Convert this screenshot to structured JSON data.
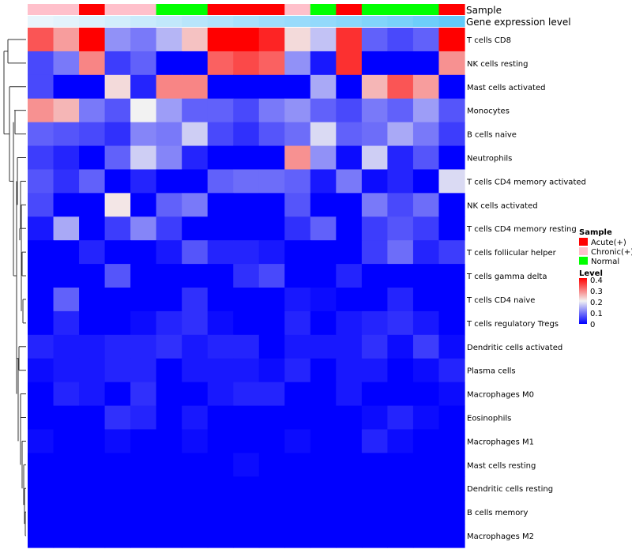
{
  "chart_data": {
    "type": "heatmap",
    "title": "",
    "annotation_rows": {
      "sample_label": "Sample",
      "expression_label": "Gene expression level",
      "sample_groups": [
        "Chronic(+)",
        "Chronic(+)",
        "Acute(+)",
        "Chronic(+)",
        "Chronic(+)",
        "Normal",
        "Normal",
        "Acute(+)",
        "Acute(+)",
        "Acute(+)",
        "Chronic(+)",
        "Normal",
        "Acute(+)",
        "Normal",
        "Normal",
        "Normal",
        "Acute(+)"
      ],
      "expression_values": [
        0.02,
        0.06,
        0.12,
        0.18,
        0.24,
        0.3,
        0.36,
        0.42,
        0.48,
        0.54,
        0.58,
        0.62,
        0.68,
        0.74,
        0.8,
        0.88,
        0.96
      ]
    },
    "rows": [
      "T cells CD8",
      "NK cells resting",
      "Mast cells activated",
      "Monocytes",
      "B cells naive",
      "Neutrophils",
      "T cells CD4 memory activated",
      "NK cells activated",
      "T cells CD4 memory resting",
      "T cells follicular helper",
      "T cells gamma delta",
      "T cells CD4 naive",
      "T cells regulatory  Tregs",
      "Dendritic cells activated",
      "Plasma cells",
      "Macrophages M0",
      "Eosinophils",
      "Macrophages M1",
      "Mast cells resting",
      "Dendritic cells resting",
      "B cells memory",
      "Macrophages M2"
    ],
    "values": [
      [
        0.33,
        0.27,
        0.4,
        0.12,
        0.1,
        0.15,
        0.24,
        0.4,
        0.4,
        0.37,
        0.22,
        0.16,
        0.36,
        0.08,
        0.06,
        0.08,
        0.4
      ],
      [
        0.06,
        0.1,
        0.29,
        0.05,
        0.08,
        0.0,
        0.0,
        0.32,
        0.34,
        0.32,
        0.12,
        0.02,
        0.36,
        0.0,
        0.0,
        0.0,
        0.28
      ],
      [
        0.06,
        0.0,
        0.0,
        0.22,
        0.03,
        0.29,
        0.29,
        0.0,
        0.0,
        0.0,
        0.0,
        0.14,
        0.0,
        0.25,
        0.33,
        0.27,
        0.0
      ],
      [
        0.28,
        0.25,
        0.1,
        0.07,
        0.2,
        0.13,
        0.08,
        0.08,
        0.06,
        0.1,
        0.12,
        0.08,
        0.06,
        0.1,
        0.08,
        0.13,
        0.07
      ],
      [
        0.08,
        0.07,
        0.06,
        0.04,
        0.11,
        0.1,
        0.17,
        0.06,
        0.04,
        0.07,
        0.09,
        0.18,
        0.08,
        0.09,
        0.14,
        0.1,
        0.05
      ],
      [
        0.05,
        0.03,
        0.0,
        0.08,
        0.17,
        0.11,
        0.03,
        0.0,
        0.0,
        0.0,
        0.28,
        0.12,
        0.01,
        0.17,
        0.03,
        0.07,
        0.0
      ],
      [
        0.07,
        0.04,
        0.08,
        0.0,
        0.03,
        0.0,
        0.0,
        0.08,
        0.09,
        0.09,
        0.08,
        0.02,
        0.1,
        0.01,
        0.03,
        0.0,
        0.18
      ],
      [
        0.06,
        0.0,
        0.0,
        0.21,
        0.0,
        0.08,
        0.1,
        0.0,
        0.0,
        0.0,
        0.07,
        0.0,
        0.0,
        0.1,
        0.06,
        0.09,
        0.0
      ],
      [
        0.02,
        0.14,
        0.0,
        0.05,
        0.11,
        0.05,
        0.0,
        0.0,
        0.0,
        0.0,
        0.04,
        0.08,
        0.0,
        0.05,
        0.07,
        0.05,
        0.0
      ],
      [
        0.0,
        0.0,
        0.03,
        0.0,
        0.0,
        0.02,
        0.07,
        0.03,
        0.03,
        0.02,
        0.0,
        0.0,
        0.0,
        0.05,
        0.09,
        0.03,
        0.05
      ],
      [
        0.0,
        0.0,
        0.0,
        0.07,
        0.0,
        0.0,
        0.0,
        0.0,
        0.04,
        0.06,
        0.0,
        0.0,
        0.03,
        0.0,
        0.0,
        0.0,
        0.0
      ],
      [
        0.0,
        0.08,
        0.0,
        0.0,
        0.0,
        0.0,
        0.04,
        0.0,
        0.0,
        0.0,
        0.02,
        0.01,
        0.0,
        0.0,
        0.03,
        0.0,
        0.0
      ],
      [
        0.0,
        0.03,
        0.0,
        0.0,
        0.01,
        0.03,
        0.04,
        0.01,
        0.0,
        0.0,
        0.03,
        0.0,
        0.02,
        0.03,
        0.04,
        0.02,
        0.0
      ],
      [
        0.03,
        0.02,
        0.02,
        0.03,
        0.03,
        0.04,
        0.02,
        0.03,
        0.03,
        0.0,
        0.02,
        0.02,
        0.02,
        0.04,
        0.01,
        0.05,
        0.01
      ],
      [
        0.01,
        0.02,
        0.02,
        0.03,
        0.03,
        0.0,
        0.02,
        0.02,
        0.02,
        0.01,
        0.03,
        0.0,
        0.02,
        0.02,
        0.0,
        0.01,
        0.03
      ],
      [
        0.0,
        0.03,
        0.02,
        0.0,
        0.04,
        0.0,
        0.0,
        0.02,
        0.03,
        0.03,
        0.0,
        0.0,
        0.02,
        0.0,
        0.0,
        0.0,
        0.01
      ],
      [
        0.0,
        0.0,
        0.0,
        0.04,
        0.03,
        0.0,
        0.02,
        0.0,
        0.0,
        0.0,
        0.0,
        0.0,
        0.0,
        0.01,
        0.03,
        0.01,
        0.0
      ],
      [
        0.01,
        0.0,
        0.0,
        0.01,
        0.0,
        0.0,
        0.01,
        0.0,
        0.0,
        0.0,
        0.01,
        0.0,
        0.0,
        0.03,
        0.01,
        0.0,
        0.0
      ],
      [
        0.0,
        0.0,
        0.0,
        0.0,
        0.0,
        0.0,
        0.0,
        0.0,
        0.01,
        0.0,
        0.0,
        0.0,
        0.0,
        0.0,
        0.0,
        0.0,
        0.0
      ],
      [
        0.0,
        0.0,
        0.0,
        0.0,
        0.0,
        0.0,
        0.0,
        0.0,
        0.0,
        0.0,
        0.0,
        0.0,
        0.0,
        0.0,
        0.0,
        0.0,
        0.0
      ],
      [
        0.0,
        0.0,
        0.0,
        0.0,
        0.0,
        0.0,
        0.0,
        0.0,
        0.0,
        0.0,
        0.0,
        0.0,
        0.0,
        0.0,
        0.0,
        0.0,
        0.0
      ],
      [
        0.0,
        0.0,
        0.0,
        0.0,
        0.0,
        0.0,
        0.0,
        0.0,
        0.0,
        0.0,
        0.0,
        0.0,
        0.0,
        0.0,
        0.0,
        0.0,
        0.0
      ]
    ],
    "color_scale": {
      "min": 0,
      "mid": 0.2,
      "max": 0.4,
      "low": "#0000ff",
      "mid_color": "#f2f2f2",
      "high": "#ff0000"
    },
    "legend": {
      "sample_title": "Sample",
      "sample_items": [
        {
          "label": "Acute(+)",
          "color": "#ff0000"
        },
        {
          "label": "Chronic(+)",
          "color": "#ffc0cb"
        },
        {
          "label": "Normal",
          "color": "#00ff00"
        }
      ],
      "level_title": "Level",
      "level_ticks": [
        "0.4",
        "0.3",
        "0.2",
        "0.1",
        "0"
      ],
      "placement": "right"
    },
    "row_dendrogram": true
  }
}
